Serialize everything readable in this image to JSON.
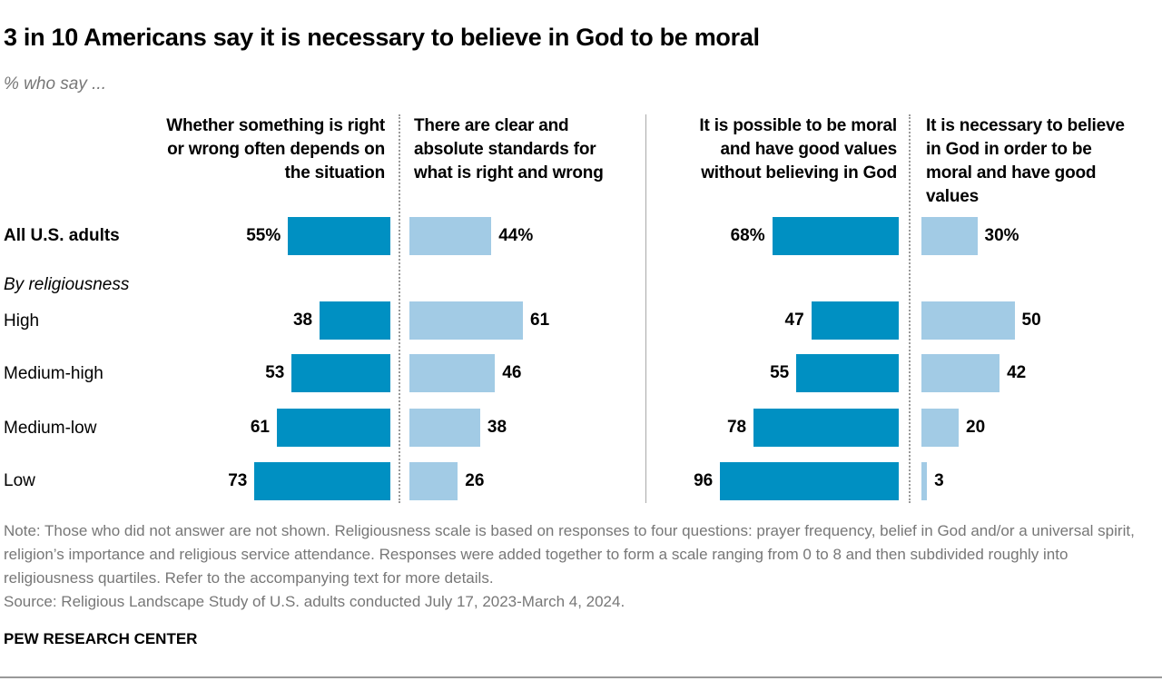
{
  "chart_data": {
    "type": "bar",
    "title": "3 in 10 Americans say it is necessary to believe in God to be moral",
    "subtitle": "% who say ...",
    "group_label": "By religiousness",
    "categories": [
      "All U.S. adults",
      "High",
      "Medium-high",
      "Medium-low",
      "Low"
    ],
    "series": [
      {
        "name": "Whether something is right or wrong often depends on the situation",
        "values": [
          55,
          38,
          53,
          61,
          73
        ],
        "color": "#0090c2"
      },
      {
        "name": "There are clear and absolute standards for what is right and wrong",
        "values": [
          44,
          61,
          46,
          38,
          26
        ],
        "color": "#a2cbe5"
      },
      {
        "name": "It is possible to be moral and have good values without believing in God",
        "values": [
          68,
          47,
          55,
          78,
          96
        ],
        "color": "#0090c2"
      },
      {
        "name": "It is necessary to believe in God in order to be moral and have good values",
        "values": [
          30,
          50,
          42,
          20,
          3
        ],
        "color": "#a2cbe5"
      }
    ],
    "value_labels": [
      [
        "55%",
        "38",
        "53",
        "61",
        "73"
      ],
      [
        "44%",
        "61",
        "46",
        "38",
        "26"
      ],
      [
        "68%",
        "47",
        "55",
        "78",
        "96"
      ],
      [
        "30%",
        "50",
        "42",
        "20",
        "3"
      ]
    ]
  },
  "note": "Note: Those who did not answer are not shown. Religiousness scale is based on responses to four questions: prayer frequency, belief in God and/or a universal spirit, religion’s importance and religious service attendance. Responses were added together to form a scale ranging from 0 to 8 and then subdivided roughly into religiousness quartiles. Refer to the accompanying text for more details.",
  "source": "Source: Religious Landscape Study of U.S. adults conducted July 17, 2023-March 4, 2024.",
  "brand": "PEW RESEARCH CENTER"
}
